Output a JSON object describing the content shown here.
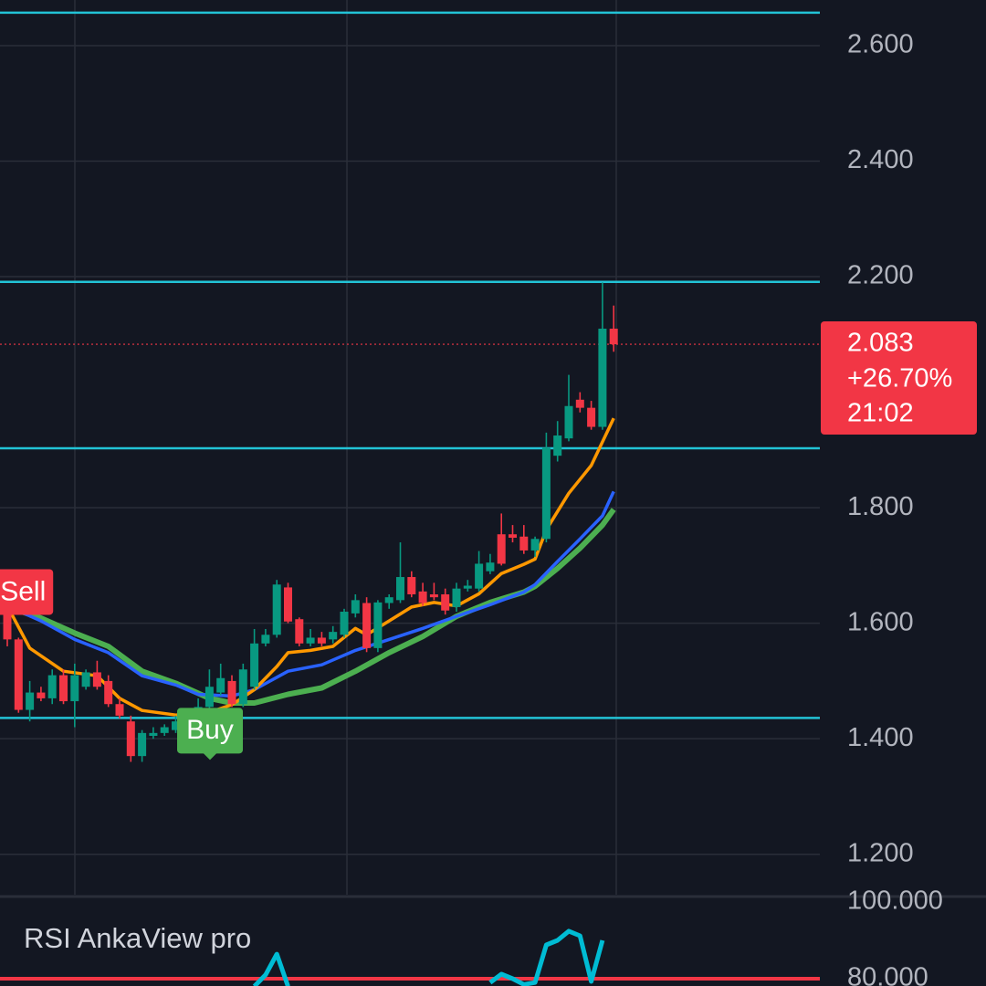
{
  "chart_data": {
    "type": "candlestick",
    "open": [
      1.628,
      1.572,
      1.45,
      1.48,
      1.47,
      1.51,
      1.465,
      1.49,
      1.515,
      1.5,
      1.46,
      1.43,
      1.37,
      1.405,
      1.41,
      1.415,
      1.435,
      1.435,
      1.455,
      1.48,
      1.5,
      1.46,
      1.49,
      1.565,
      1.58,
      1.662,
      1.607,
      1.565,
      1.575,
      1.572,
      1.58,
      1.617,
      1.635,
      1.557,
      1.635,
      1.64,
      1.68,
      1.655,
      1.65,
      1.65,
      1.628,
      1.66,
      1.66,
      1.69,
      1.754,
      1.754,
      1.75,
      1.726,
      1.746,
      1.89,
      1.92,
      1.987,
      1.973,
      1.94,
      2.11
    ],
    "high": [
      1.64,
      1.575,
      1.5,
      1.49,
      1.52,
      1.52,
      1.53,
      1.52,
      1.535,
      1.51,
      1.47,
      1.44,
      1.415,
      1.42,
      1.425,
      1.44,
      1.44,
      1.47,
      1.52,
      1.53,
      1.51,
      1.53,
      1.59,
      1.59,
      1.675,
      1.67,
      1.61,
      1.59,
      1.585,
      1.595,
      1.625,
      1.65,
      1.645,
      1.64,
      1.65,
      1.74,
      1.69,
      1.67,
      1.67,
      1.66,
      1.67,
      1.675,
      1.725,
      1.72,
      1.79,
      1.77,
      1.77,
      1.75,
      1.93,
      1.95,
      2.03,
      2.0,
      1.985,
      2.19,
      2.15
    ],
    "low": [
      1.56,
      1.445,
      1.43,
      1.465,
      1.46,
      1.46,
      1.42,
      1.485,
      1.485,
      1.455,
      1.435,
      1.36,
      1.36,
      1.4,
      1.405,
      1.41,
      1.42,
      1.43,
      1.45,
      1.475,
      1.455,
      1.455,
      1.485,
      1.56,
      1.575,
      1.6,
      1.56,
      1.56,
      1.56,
      1.565,
      1.575,
      1.61,
      1.55,
      1.55,
      1.625,
      1.635,
      1.645,
      1.63,
      1.64,
      1.615,
      1.62,
      1.655,
      1.655,
      1.685,
      1.7,
      1.74,
      1.72,
      1.715,
      1.74,
      1.88,
      1.915,
      1.965,
      1.935,
      1.935,
      2.07
    ],
    "close": [
      1.572,
      1.45,
      1.48,
      1.47,
      1.51,
      1.465,
      1.51,
      1.515,
      1.49,
      1.46,
      1.44,
      1.37,
      1.41,
      1.41,
      1.42,
      1.43,
      1.425,
      1.455,
      1.49,
      1.505,
      1.46,
      1.52,
      1.565,
      1.58,
      1.667,
      1.603,
      1.565,
      1.575,
      1.565,
      1.585,
      1.62,
      1.64,
      1.557,
      1.636,
      1.645,
      1.68,
      1.65,
      1.635,
      1.645,
      1.622,
      1.66,
      1.665,
      1.703,
      1.705,
      1.703,
      1.748,
      1.726,
      1.746,
      1.904,
      1.925,
      1.976,
      1.973,
      1.94,
      2.11,
      2.083
    ],
    "up_color": "#089981",
    "down_color": "#f23645",
    "ylim": [
      1.13,
      2.679
    ],
    "yticks": [
      {
        "value": 2.6,
        "label": "2.600"
      },
      {
        "value": 2.4,
        "label": "2.400"
      },
      {
        "value": 2.2,
        "label": "2.200"
      },
      {
        "value": 1.8,
        "label": "1.800"
      },
      {
        "value": 1.6,
        "label": "1.600"
      },
      {
        "value": 1.4,
        "label": "1.400"
      },
      {
        "value": 1.2,
        "label": "1.200"
      }
    ],
    "grid": true,
    "levels": [
      2.657,
      2.191,
      1.903,
      1.436
    ],
    "level_color": "#22c3d6",
    "last_price": 2.083,
    "change_label": "+26.70%",
    "countdown": "21:02",
    "moving_averages": [
      {
        "color": "#4caf50",
        "x": [
          0,
          3,
          6,
          9,
          12,
          15,
          18,
          20,
          22,
          25,
          28,
          31,
          34,
          37,
          40,
          43,
          46,
          47,
          49,
          51,
          53,
          54
        ],
        "values": [
          1.628,
          1.609,
          1.583,
          1.56,
          1.517,
          1.496,
          1.47,
          1.462,
          1.462,
          1.477,
          1.488,
          1.517,
          1.549,
          1.577,
          1.612,
          1.636,
          1.654,
          1.664,
          1.695,
          1.73,
          1.77,
          1.797
        ]
      },
      {
        "color": "#2962ff",
        "x": [
          0,
          3,
          6,
          9,
          12,
          15,
          17,
          20,
          22,
          25,
          28,
          31,
          34,
          37,
          40,
          43,
          46,
          47,
          49,
          51,
          53,
          54
        ],
        "values": [
          1.63,
          1.604,
          1.572,
          1.549,
          1.509,
          1.493,
          1.477,
          1.474,
          1.485,
          1.517,
          1.528,
          1.553,
          1.572,
          1.591,
          1.612,
          1.632,
          1.654,
          1.667,
          1.707,
          1.746,
          1.786,
          1.828
        ]
      },
      {
        "color": "#ff9800",
        "x": [
          0,
          2,
          5,
          8,
          10,
          12,
          15,
          18,
          20,
          22,
          24,
          25,
          27,
          29,
          31,
          32,
          34,
          36,
          38,
          40,
          42,
          44,
          46,
          47,
          48,
          50,
          52,
          54
        ],
        "values": [
          1.63,
          1.557,
          1.517,
          1.509,
          1.47,
          1.449,
          1.441,
          1.446,
          1.459,
          1.485,
          1.525,
          1.549,
          1.553,
          1.56,
          1.591,
          1.58,
          1.604,
          1.628,
          1.636,
          1.63,
          1.651,
          1.686,
          1.702,
          1.711,
          1.762,
          1.825,
          1.873,
          1.955
        ]
      }
    ],
    "signals": [
      {
        "label": "Sell",
        "x": 1.4,
        "value": 1.654,
        "color": "#f23645"
      },
      {
        "label": "Buy",
        "x": 18.05,
        "value": 1.414,
        "color": "#4caf50"
      }
    ],
    "rsi": {
      "title": "RSI AnkaView pro",
      "ylim": [
        78.1,
        101.9
      ],
      "yticks": [
        {
          "value": 100,
          "label": "100.000"
        },
        {
          "value": 80,
          "label": "80.000"
        }
      ],
      "level": 80,
      "level_color": "#f23645",
      "series": [
        {
          "color": "#00bcd4",
          "x": [
            22,
            23,
            24,
            25,
            null,
            43,
            44,
            45,
            46,
            47,
            48,
            49,
            50,
            51,
            52,
            53
          ],
          "values": [
            78,
            81,
            86.4,
            78,
            null,
            79,
            81.2,
            80,
            78.5,
            79,
            88.8,
            90,
            92.4,
            91.2,
            79.3,
            90
          ]
        }
      ]
    }
  }
}
